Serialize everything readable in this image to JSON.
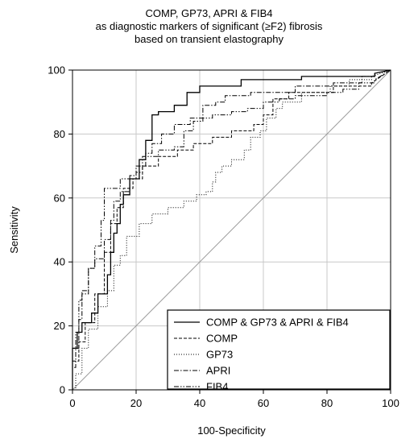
{
  "chart_data": {
    "type": "line",
    "title_lines": [
      "COMP, GP73, APRI & FIB4",
      "as diagnostic markers of significant (≥F2) fibrosis",
      "based on transient elastography"
    ],
    "xlabel": "100-Specificity",
    "ylabel": "Sensitivity",
    "xlim": [
      0,
      100
    ],
    "ylim": [
      0,
      100
    ],
    "xticks": [
      "0",
      "20",
      "40",
      "60",
      "80",
      "100"
    ],
    "yticks": [
      "0",
      "20",
      "40",
      "60",
      "80",
      "100"
    ],
    "grid": true,
    "legend_position": "bottom-right",
    "series": [
      {
        "name": "COMP & GP73 & APRI & FIB4",
        "dash": "solid",
        "points": [
          [
            0,
            0
          ],
          [
            0,
            13
          ],
          [
            1.5,
            13
          ],
          [
            1.5,
            18
          ],
          [
            3,
            18
          ],
          [
            3,
            21
          ],
          [
            6,
            21
          ],
          [
            6,
            24
          ],
          [
            8,
            24
          ],
          [
            8,
            30
          ],
          [
            11,
            30
          ],
          [
            11,
            36
          ],
          [
            12,
            36
          ],
          [
            12,
            43
          ],
          [
            13,
            43
          ],
          [
            13,
            49
          ],
          [
            14,
            49
          ],
          [
            14,
            52
          ],
          [
            15,
            52
          ],
          [
            15,
            58
          ],
          [
            16,
            58
          ],
          [
            16,
            61
          ],
          [
            18,
            61
          ],
          [
            18,
            66
          ],
          [
            21,
            66
          ],
          [
            21,
            72
          ],
          [
            23,
            72
          ],
          [
            23,
            78
          ],
          [
            25,
            78
          ],
          [
            25,
            86
          ],
          [
            27,
            86
          ],
          [
            27,
            87
          ],
          [
            32,
            87
          ],
          [
            32,
            89
          ],
          [
            36,
            89
          ],
          [
            36,
            93
          ],
          [
            40,
            93
          ],
          [
            40,
            95
          ],
          [
            53,
            95
          ],
          [
            53,
            97
          ],
          [
            72,
            97
          ],
          [
            72,
            98
          ],
          [
            95,
            98
          ],
          [
            95,
            99
          ],
          [
            100,
            100
          ]
        ]
      },
      {
        "name": "COMP",
        "dash": "dashed",
        "points": [
          [
            0,
            0
          ],
          [
            0,
            9
          ],
          [
            2,
            9
          ],
          [
            2,
            15
          ],
          [
            4,
            15
          ],
          [
            4,
            21
          ],
          [
            7,
            21
          ],
          [
            7,
            30
          ],
          [
            10,
            30
          ],
          [
            10,
            43
          ],
          [
            12,
            43
          ],
          [
            12,
            52
          ],
          [
            14,
            52
          ],
          [
            14,
            57
          ],
          [
            16,
            57
          ],
          [
            16,
            63
          ],
          [
            19,
            63
          ],
          [
            19,
            66
          ],
          [
            22,
            66
          ],
          [
            22,
            70
          ],
          [
            27,
            70
          ],
          [
            27,
            73
          ],
          [
            33,
            73
          ],
          [
            33,
            75
          ],
          [
            38,
            75
          ],
          [
            38,
            77
          ],
          [
            44,
            77
          ],
          [
            44,
            79
          ],
          [
            50,
            79
          ],
          [
            50,
            81
          ],
          [
            57,
            81
          ],
          [
            57,
            83
          ],
          [
            60,
            83
          ],
          [
            60,
            86
          ],
          [
            63,
            86
          ],
          [
            63,
            91
          ],
          [
            68,
            91
          ],
          [
            68,
            93
          ],
          [
            82,
            93
          ],
          [
            82,
            95
          ],
          [
            94,
            95
          ],
          [
            94,
            96
          ],
          [
            100,
            100
          ]
        ]
      },
      {
        "name": "GP73",
        "dash": "dotted",
        "points": [
          [
            0,
            0
          ],
          [
            1,
            0
          ],
          [
            1,
            5
          ],
          [
            3,
            5
          ],
          [
            3,
            13
          ],
          [
            5,
            13
          ],
          [
            5,
            19
          ],
          [
            8,
            19
          ],
          [
            8,
            26
          ],
          [
            11,
            26
          ],
          [
            11,
            31
          ],
          [
            13,
            31
          ],
          [
            13,
            39
          ],
          [
            15,
            39
          ],
          [
            15,
            42
          ],
          [
            17,
            42
          ],
          [
            17,
            48
          ],
          [
            21,
            48
          ],
          [
            21,
            52
          ],
          [
            25,
            52
          ],
          [
            25,
            55
          ],
          [
            30,
            55
          ],
          [
            30,
            57
          ],
          [
            35,
            57
          ],
          [
            35,
            59
          ],
          [
            39,
            59
          ],
          [
            39,
            61
          ],
          [
            42,
            61
          ],
          [
            42,
            62
          ],
          [
            44,
            62
          ],
          [
            44,
            65
          ],
          [
            45,
            65
          ],
          [
            45,
            68
          ],
          [
            47,
            68
          ],
          [
            47,
            70
          ],
          [
            50,
            70
          ],
          [
            50,
            72
          ],
          [
            54,
            72
          ],
          [
            54,
            75
          ],
          [
            56,
            75
          ],
          [
            56,
            79
          ],
          [
            59,
            79
          ],
          [
            59,
            81
          ],
          [
            61,
            81
          ],
          [
            61,
            85
          ],
          [
            64,
            85
          ],
          [
            64,
            88
          ],
          [
            66,
            88
          ],
          [
            66,
            90
          ],
          [
            72,
            90
          ],
          [
            72,
            93
          ],
          [
            81,
            93
          ],
          [
            81,
            95
          ],
          [
            87,
            95
          ],
          [
            87,
            97
          ],
          [
            94,
            97
          ],
          [
            94,
            98
          ],
          [
            100,
            100
          ]
        ]
      },
      {
        "name": "APRI",
        "dash": "dashdot",
        "points": [
          [
            0,
            0
          ],
          [
            0,
            13
          ],
          [
            2,
            13
          ],
          [
            2,
            22
          ],
          [
            3,
            22
          ],
          [
            3,
            30
          ],
          [
            5,
            30
          ],
          [
            5,
            38
          ],
          [
            7,
            38
          ],
          [
            7,
            41
          ],
          [
            10,
            41
          ],
          [
            10,
            47
          ],
          [
            12,
            47
          ],
          [
            12,
            53
          ],
          [
            13,
            53
          ],
          [
            13,
            59
          ],
          [
            15,
            59
          ],
          [
            15,
            62
          ],
          [
            18,
            62
          ],
          [
            18,
            67
          ],
          [
            20,
            67
          ],
          [
            20,
            70
          ],
          [
            23,
            70
          ],
          [
            23,
            74
          ],
          [
            25,
            74
          ],
          [
            25,
            77
          ],
          [
            28,
            77
          ],
          [
            28,
            80
          ],
          [
            32,
            80
          ],
          [
            32,
            83
          ],
          [
            37,
            83
          ],
          [
            37,
            85
          ],
          [
            41,
            85
          ],
          [
            41,
            89
          ],
          [
            45,
            89
          ],
          [
            45,
            90
          ],
          [
            48,
            90
          ],
          [
            48,
            92
          ],
          [
            56,
            92
          ],
          [
            56,
            93
          ],
          [
            70,
            93
          ],
          [
            70,
            95
          ],
          [
            82,
            95
          ],
          [
            82,
            96
          ],
          [
            91,
            96
          ],
          [
            91,
            98
          ],
          [
            95,
            98
          ],
          [
            95,
            99
          ],
          [
            100,
            100
          ]
        ]
      },
      {
        "name": "FIB4",
        "dash": "dashdotdot",
        "points": [
          [
            0,
            0
          ],
          [
            0,
            7
          ],
          [
            1,
            7
          ],
          [
            1,
            18
          ],
          [
            2,
            18
          ],
          [
            2,
            28
          ],
          [
            3,
            28
          ],
          [
            3,
            31
          ],
          [
            5,
            31
          ],
          [
            5,
            38
          ],
          [
            7,
            38
          ],
          [
            7,
            45
          ],
          [
            9,
            45
          ],
          [
            9,
            53
          ],
          [
            10,
            53
          ],
          [
            10,
            63
          ],
          [
            15,
            63
          ],
          [
            15,
            66
          ],
          [
            20,
            66
          ],
          [
            20,
            68
          ],
          [
            22,
            68
          ],
          [
            22,
            73
          ],
          [
            27,
            73
          ],
          [
            27,
            75
          ],
          [
            32,
            75
          ],
          [
            32,
            76
          ],
          [
            35,
            76
          ],
          [
            35,
            81
          ],
          [
            38,
            81
          ],
          [
            38,
            84
          ],
          [
            41,
            84
          ],
          [
            41,
            85
          ],
          [
            44,
            85
          ],
          [
            44,
            86
          ],
          [
            50,
            86
          ],
          [
            50,
            87
          ],
          [
            55,
            87
          ],
          [
            55,
            88
          ],
          [
            60,
            88
          ],
          [
            60,
            90
          ],
          [
            65,
            90
          ],
          [
            65,
            91
          ],
          [
            70,
            91
          ],
          [
            70,
            92
          ],
          [
            80,
            92
          ],
          [
            80,
            93
          ],
          [
            85,
            93
          ],
          [
            85,
            94
          ],
          [
            90,
            94
          ],
          [
            90,
            96
          ],
          [
            95,
            96
          ],
          [
            95,
            97
          ],
          [
            100,
            100
          ]
        ]
      }
    ]
  }
}
